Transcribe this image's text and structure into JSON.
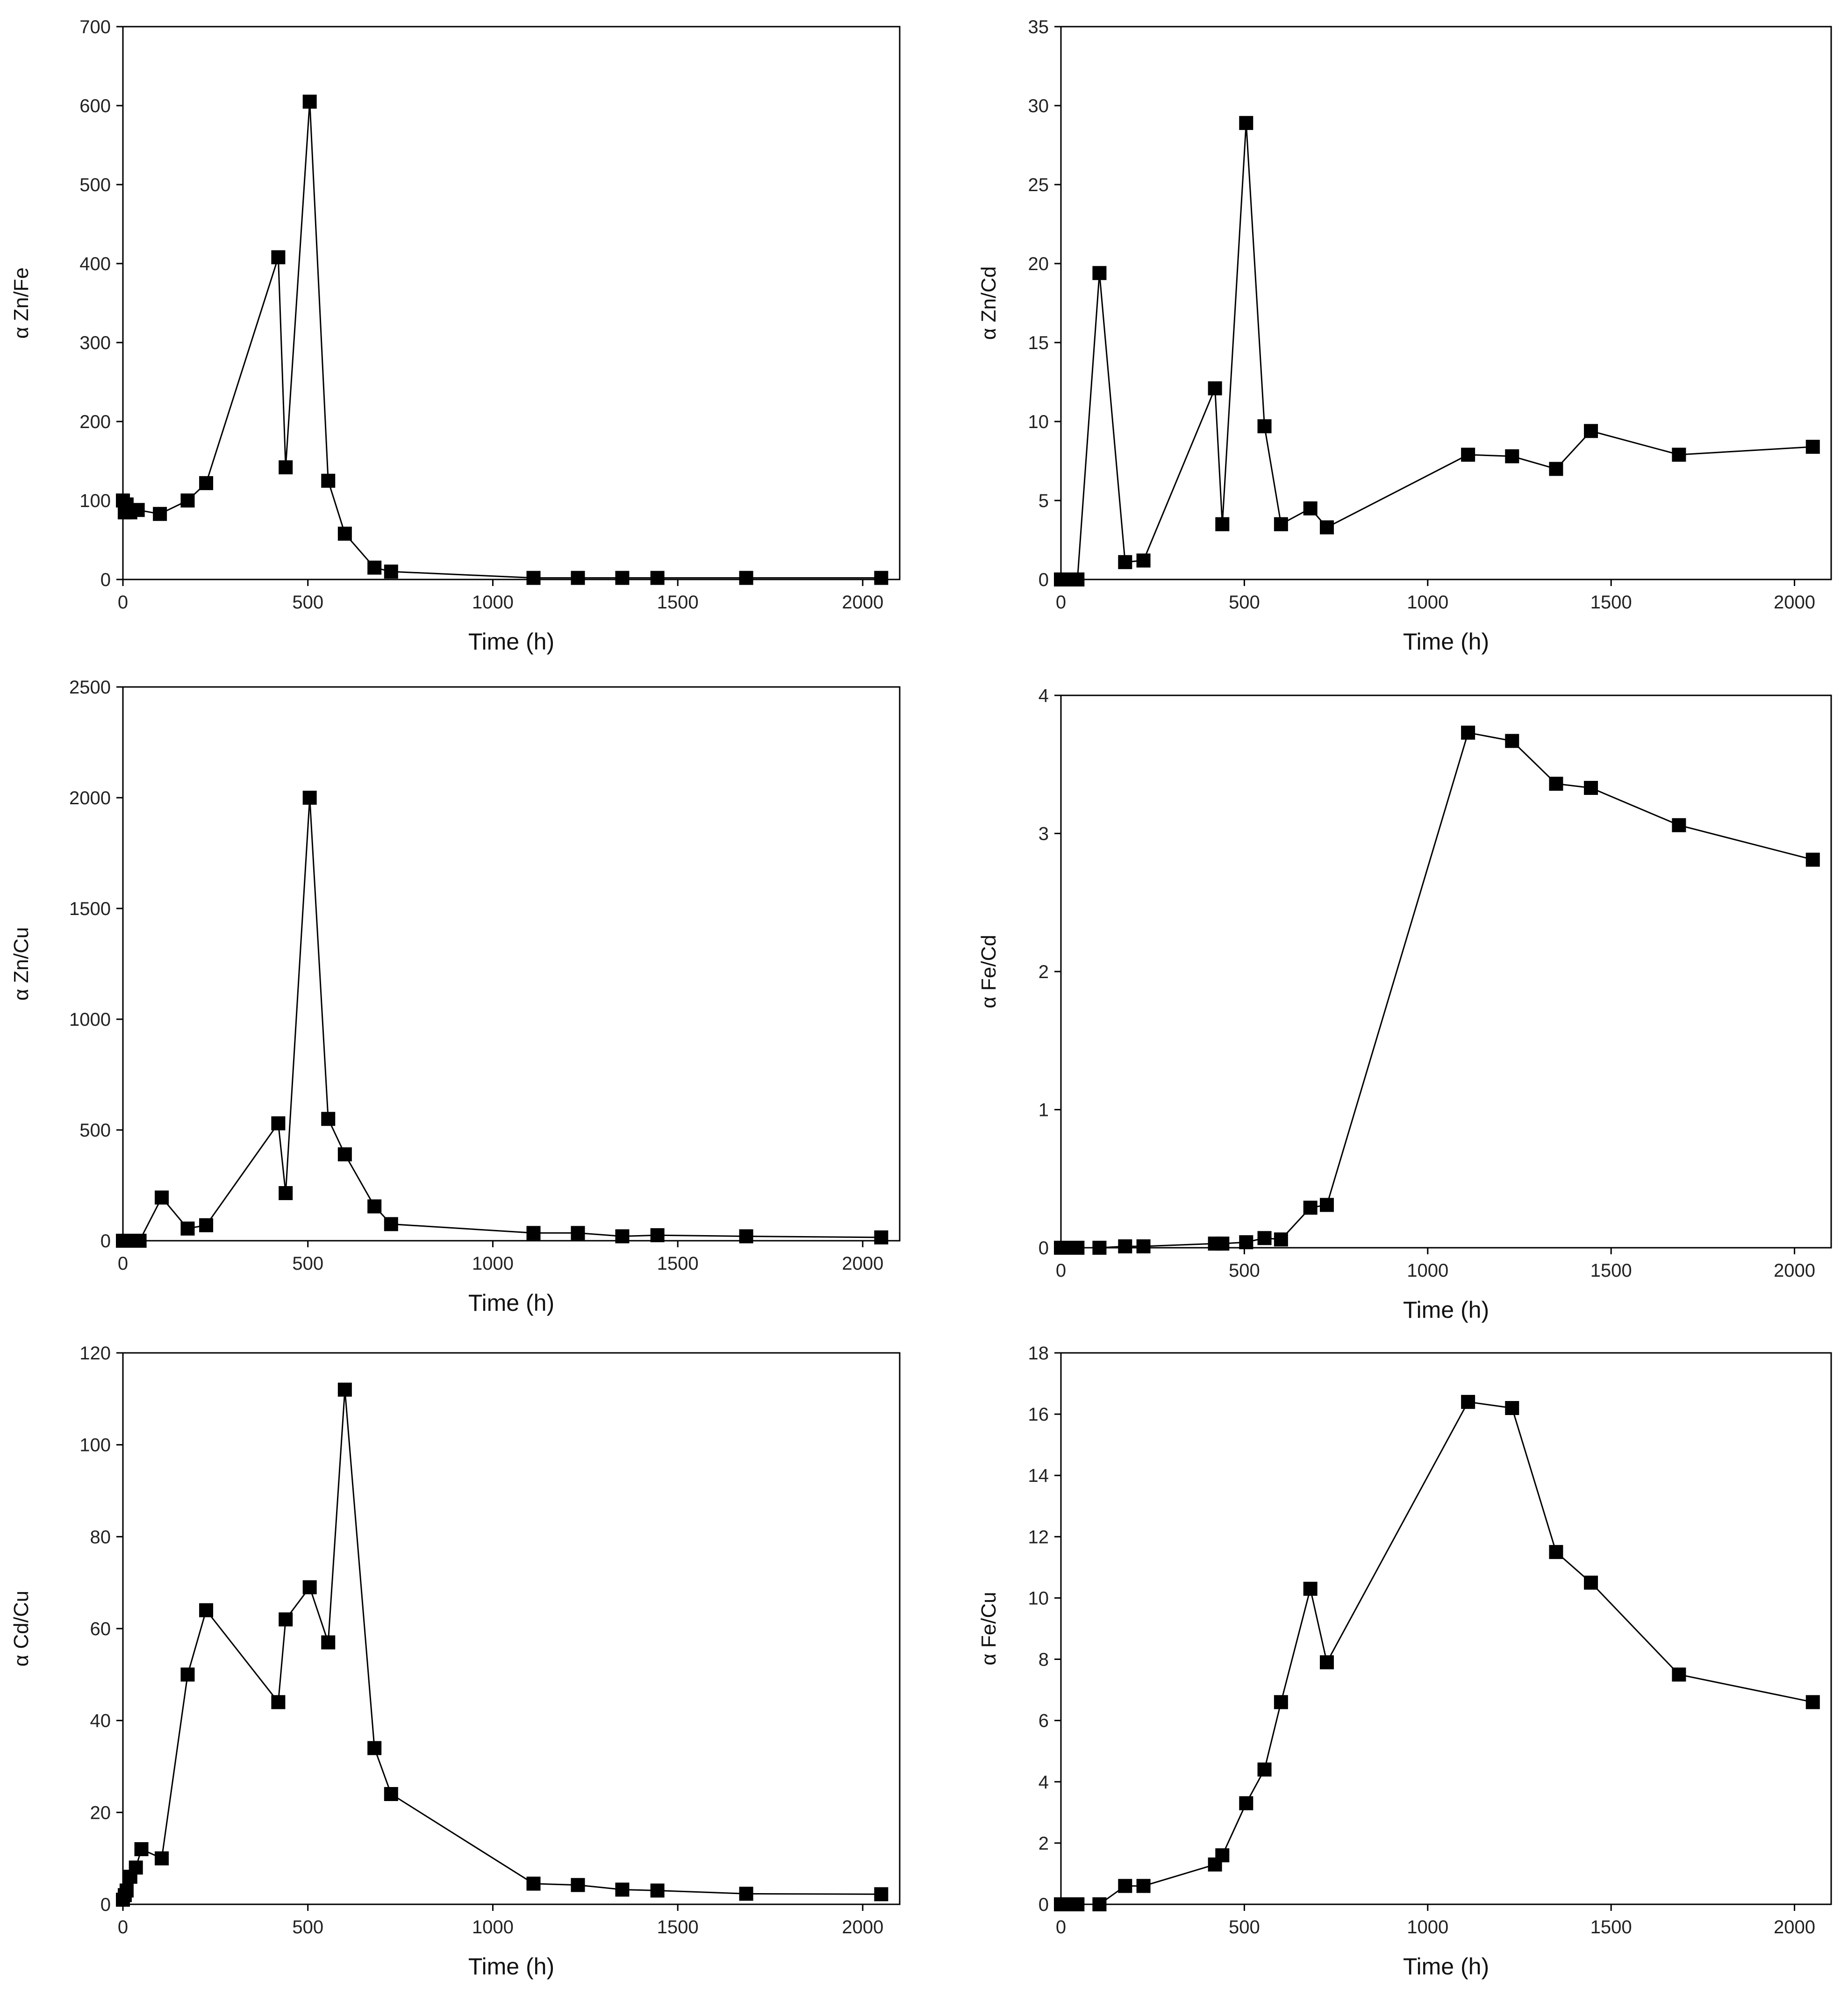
{
  "chart_data": [
    {
      "type": "line",
      "title": "",
      "xlabel": "Time (h)",
      "ylabel": "α Zn/Fe",
      "xlim": [
        0,
        2100
      ],
      "ylim": [
        0,
        700
      ],
      "xticks": [
        0,
        500,
        1000,
        1500,
        2000
      ],
      "yticks": [
        0,
        100,
        200,
        300,
        400,
        500,
        600,
        700
      ],
      "marker": "square",
      "series": [
        {
          "name": "Zn/Fe",
          "x": [
            0,
            5,
            10,
            20,
            40,
            100,
            175,
            225,
            420,
            440,
            505,
            555,
            600,
            680,
            725,
            1110,
            1230,
            1350,
            1445,
            1685,
            2050
          ],
          "y": [
            100,
            85,
            95,
            85,
            88,
            83,
            100,
            122,
            408,
            142,
            605,
            125,
            58,
            15,
            10,
            2,
            2,
            2,
            2,
            2,
            2
          ]
        }
      ]
    },
    {
      "type": "line",
      "title": "",
      "xlabel": "Time (h)",
      "ylabel": "α Zn/Cd",
      "xlim": [
        0,
        2100
      ],
      "ylim": [
        0,
        35
      ],
      "xticks": [
        0,
        500,
        1000,
        1500,
        2000
      ],
      "yticks": [
        0,
        5,
        10,
        15,
        20,
        25,
        30,
        35
      ],
      "marker": "square",
      "series": [
        {
          "name": "Zn/Cd",
          "x": [
            0,
            20,
            45,
            105,
            175,
            225,
            420,
            440,
            505,
            555,
            600,
            680,
            725,
            1110,
            1230,
            1350,
            1445,
            1685,
            2050
          ],
          "y": [
            0,
            0,
            0,
            19.4,
            1.1,
            1.2,
            12.1,
            3.5,
            28.9,
            9.7,
            3.5,
            4.5,
            3.3,
            7.9,
            7.8,
            7,
            9.4,
            7.9,
            8.4
          ]
        }
      ]
    },
    {
      "type": "line",
      "title": "",
      "xlabel": "Time (h)",
      "ylabel": "α Zn/Cu",
      "xlim": [
        0,
        2100
      ],
      "ylim": [
        0,
        2500
      ],
      "xticks": [
        0,
        500,
        1000,
        1500,
        2000
      ],
      "yticks": [
        0,
        500,
        1000,
        1500,
        2000,
        2500
      ],
      "marker": "square",
      "series": [
        {
          "name": "Zn/Cu",
          "x": [
            0,
            20,
            45,
            105,
            175,
            225,
            420,
            440,
            505,
            555,
            600,
            680,
            725,
            1110,
            1230,
            1350,
            1445,
            1685,
            2050
          ],
          "y": [
            0,
            0,
            0,
            195,
            55,
            70,
            530,
            215,
            2000,
            550,
            390,
            155,
            75,
            35,
            35,
            20,
            25,
            20,
            15
          ]
        }
      ]
    },
    {
      "type": "line",
      "title": "",
      "xlabel": "Time (h)",
      "ylabel": "α Fe/Cd",
      "xlim": [
        0,
        2100
      ],
      "ylim": [
        0,
        4
      ],
      "xticks": [
        0,
        500,
        1000,
        1500,
        2000
      ],
      "yticks": [
        0,
        1,
        2,
        3,
        4
      ],
      "marker": "square",
      "series": [
        {
          "name": "Fe/Cd",
          "x": [
            0,
            20,
            45,
            105,
            175,
            225,
            420,
            440,
            505,
            555,
            600,
            680,
            725,
            1110,
            1230,
            1350,
            1445,
            1685,
            2050
          ],
          "y": [
            0,
            0,
            0,
            0,
            0.01,
            0.01,
            0.03,
            0.03,
            0.04,
            0.07,
            0.06,
            0.29,
            0.31,
            3.73,
            3.67,
            3.36,
            3.33,
            3.06,
            2.81
          ]
        }
      ]
    },
    {
      "type": "line",
      "title": "",
      "xlabel": "Time (h)",
      "ylabel": "α Cd/Cu",
      "xlim": [
        0,
        2100
      ],
      "ylim": [
        0,
        120
      ],
      "xticks": [
        0,
        500,
        1000,
        1500,
        2000
      ],
      "yticks": [
        0,
        20,
        40,
        60,
        80,
        100,
        120
      ],
      "marker": "square",
      "series": [
        {
          "name": "Cd/Cu",
          "x": [
            0,
            5,
            10,
            20,
            35,
            50,
            105,
            175,
            225,
            420,
            440,
            505,
            555,
            600,
            680,
            725,
            1110,
            1230,
            1350,
            1445,
            1685,
            2050
          ],
          "y": [
            1,
            2,
            3,
            6,
            8,
            12,
            10,
            50,
            64,
            44,
            62,
            69,
            57,
            112,
            34,
            24,
            4.5,
            4.2,
            3.2,
            3,
            2.3,
            2.2
          ]
        }
      ]
    },
    {
      "type": "line",
      "title": "",
      "xlabel": "Time (h)",
      "ylabel": "α Fe/Cu",
      "xlim": [
        0,
        2100
      ],
      "ylim": [
        0,
        18
      ],
      "xticks": [
        0,
        500,
        1000,
        1500,
        2000
      ],
      "yticks": [
        0,
        2,
        4,
        6,
        8,
        10,
        12,
        14,
        16,
        18
      ],
      "marker": "square",
      "series": [
        {
          "name": "Fe/Cu",
          "x": [
            0,
            20,
            45,
            105,
            175,
            225,
            420,
            440,
            505,
            555,
            600,
            680,
            725,
            1110,
            1230,
            1350,
            1445,
            1685,
            2050
          ],
          "y": [
            0,
            0,
            0,
            0,
            0.6,
            0.6,
            1.3,
            1.6,
            3.3,
            4.4,
            6.6,
            10.3,
            7.9,
            16.4,
            16.2,
            11.5,
            10.5,
            7.5,
            6.6
          ]
        }
      ]
    }
  ]
}
